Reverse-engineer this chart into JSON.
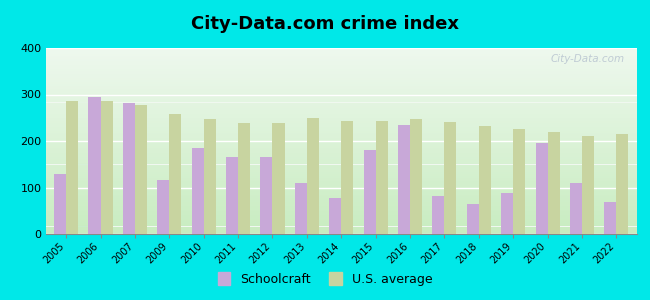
{
  "title": "City-Data.com crime index",
  "years": [
    2005,
    2006,
    2007,
    2009,
    2010,
    2011,
    2012,
    2013,
    2014,
    2015,
    2016,
    2017,
    2018,
    2019,
    2020,
    2021,
    2022
  ],
  "schoolcraft": [
    130,
    295,
    282,
    117,
    185,
    165,
    165,
    110,
    78,
    180,
    235,
    82,
    65,
    88,
    195,
    110,
    68
  ],
  "us_average": [
    285,
    285,
    278,
    257,
    247,
    238,
    238,
    250,
    243,
    243,
    247,
    240,
    232,
    225,
    220,
    210,
    215
  ],
  "schoolcraft_color": "#c8a8d8",
  "us_average_color": "#c8d4a0",
  "outer_background": "#00e8e8",
  "ylim": [
    0,
    400
  ],
  "yticks": [
    0,
    100,
    200,
    300,
    400
  ],
  "bar_width": 0.35,
  "title_fontsize": 13,
  "watermark_text": "City-Data.com",
  "legend_schoolcraft": "Schoolcraft",
  "legend_us": "U.S. average"
}
